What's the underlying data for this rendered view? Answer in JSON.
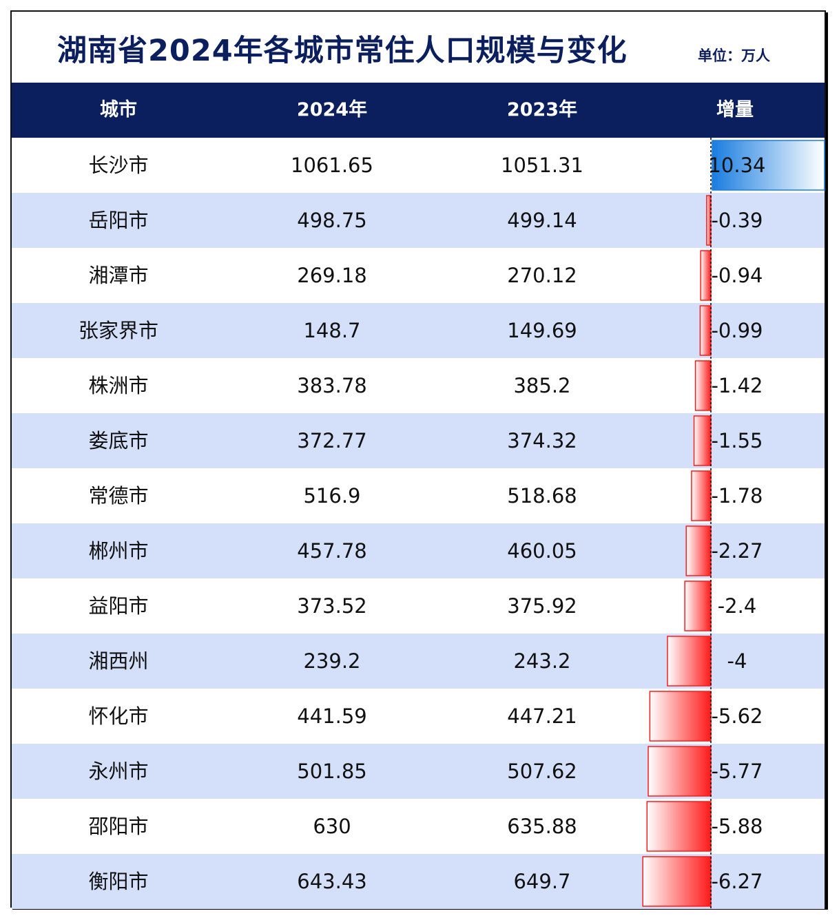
{
  "title": "湖南省2024年各城市常住人口规模与变化",
  "unit": "单位：万人",
  "headers": {
    "city": "城市",
    "y2024": "2024年",
    "y2023": "2023年",
    "change": "增量"
  },
  "colors": {
    "header_bg": "#0b1f5e",
    "alt_row": "#d4e0fa",
    "positive": "#1a7de0",
    "negative": "#ff1a1a"
  },
  "chart_data": {
    "type": "table",
    "columns": [
      "城市",
      "2024年",
      "2023年",
      "增量"
    ],
    "rows": [
      {
        "city": "长沙市",
        "y2024": "1061.65",
        "y2023": "1051.31",
        "change": 10.34
      },
      {
        "city": "岳阳市",
        "y2024": "498.75",
        "y2023": "499.14",
        "change": -0.39
      },
      {
        "city": "湘潭市",
        "y2024": "269.18",
        "y2023": "270.12",
        "change": -0.94
      },
      {
        "city": "张家界市",
        "y2024": "148.7",
        "y2023": "149.69",
        "change": -0.99
      },
      {
        "city": "株洲市",
        "y2024": "383.78",
        "y2023": "385.2",
        "change": -1.42
      },
      {
        "city": "娄底市",
        "y2024": "372.77",
        "y2023": "374.32",
        "change": -1.55
      },
      {
        "city": "常德市",
        "y2024": "516.9",
        "y2023": "518.68",
        "change": -1.78
      },
      {
        "city": "郴州市",
        "y2024": "457.78",
        "y2023": "460.05",
        "change": -2.27
      },
      {
        "city": "益阳市",
        "y2024": "373.52",
        "y2023": "375.92",
        "change": -2.4
      },
      {
        "city": "湘西州",
        "y2024": "239.2",
        "y2023": "243.2",
        "change": -4
      },
      {
        "city": "怀化市",
        "y2024": "441.59",
        "y2023": "447.21",
        "change": -5.62
      },
      {
        "city": "永州市",
        "y2024": "501.85",
        "y2023": "507.62",
        "change": -5.77
      },
      {
        "city": "邵阳市",
        "y2024": "630",
        "y2023": "635.88",
        "change": -5.88
      },
      {
        "city": "衡阳市",
        "y2024": "643.43",
        "y2023": "649.7",
        "change": -6.27
      }
    ]
  }
}
